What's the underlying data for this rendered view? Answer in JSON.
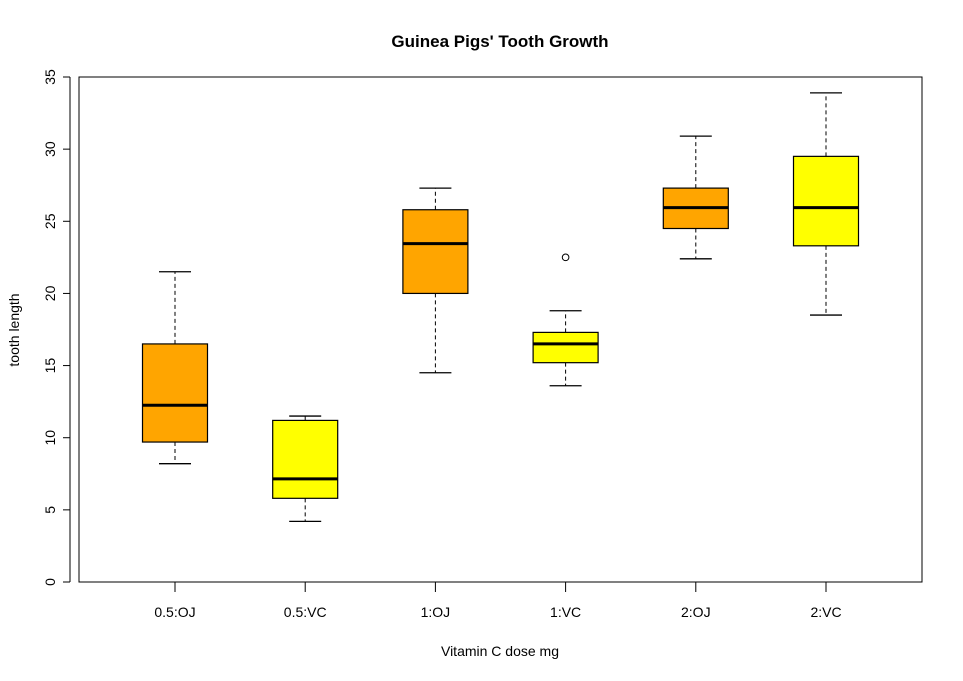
{
  "chart_data": {
    "type": "box",
    "title": "Guinea Pigs' Tooth Growth",
    "xlabel": "Vitamin C dose mg",
    "ylabel": "tooth length",
    "ylim": [
      0,
      35
    ],
    "yticks": [
      0,
      5,
      10,
      15,
      20,
      25,
      30,
      35
    ],
    "grid": false,
    "legend": "none",
    "categories": [
      "0.5:OJ",
      "0.5:VC",
      "1:OJ",
      "1:VC",
      "2:OJ",
      "2:VC"
    ],
    "boxes": [
      {
        "label": "0.5:OJ",
        "min": 8.2,
        "q1": 9.7,
        "median": 12.25,
        "q3": 16.5,
        "max": 21.5,
        "outliers": [],
        "color": "#FFA500"
      },
      {
        "label": "0.5:VC",
        "min": 4.2,
        "q1": 5.8,
        "median": 7.15,
        "q3": 11.2,
        "max": 11.5,
        "outliers": [],
        "color": "#FFFF00"
      },
      {
        "label": "1:OJ",
        "min": 14.5,
        "q1": 20.0,
        "median": 23.45,
        "q3": 25.8,
        "max": 27.3,
        "outliers": [],
        "color": "#FFA500"
      },
      {
        "label": "1:VC",
        "min": 13.6,
        "q1": 15.2,
        "median": 16.5,
        "q3": 17.3,
        "max": 18.8,
        "outliers": [
          22.5
        ],
        "color": "#FFFF00"
      },
      {
        "label": "2:OJ",
        "min": 22.4,
        "q1": 24.5,
        "median": 25.95,
        "q3": 27.3,
        "max": 30.9,
        "outliers": [],
        "color": "#FFA500"
      },
      {
        "label": "2:VC",
        "min": 18.5,
        "q1": 23.3,
        "median": 25.95,
        "q3": 29.5,
        "max": 33.9,
        "outliers": [],
        "color": "#FFFF00"
      }
    ]
  }
}
